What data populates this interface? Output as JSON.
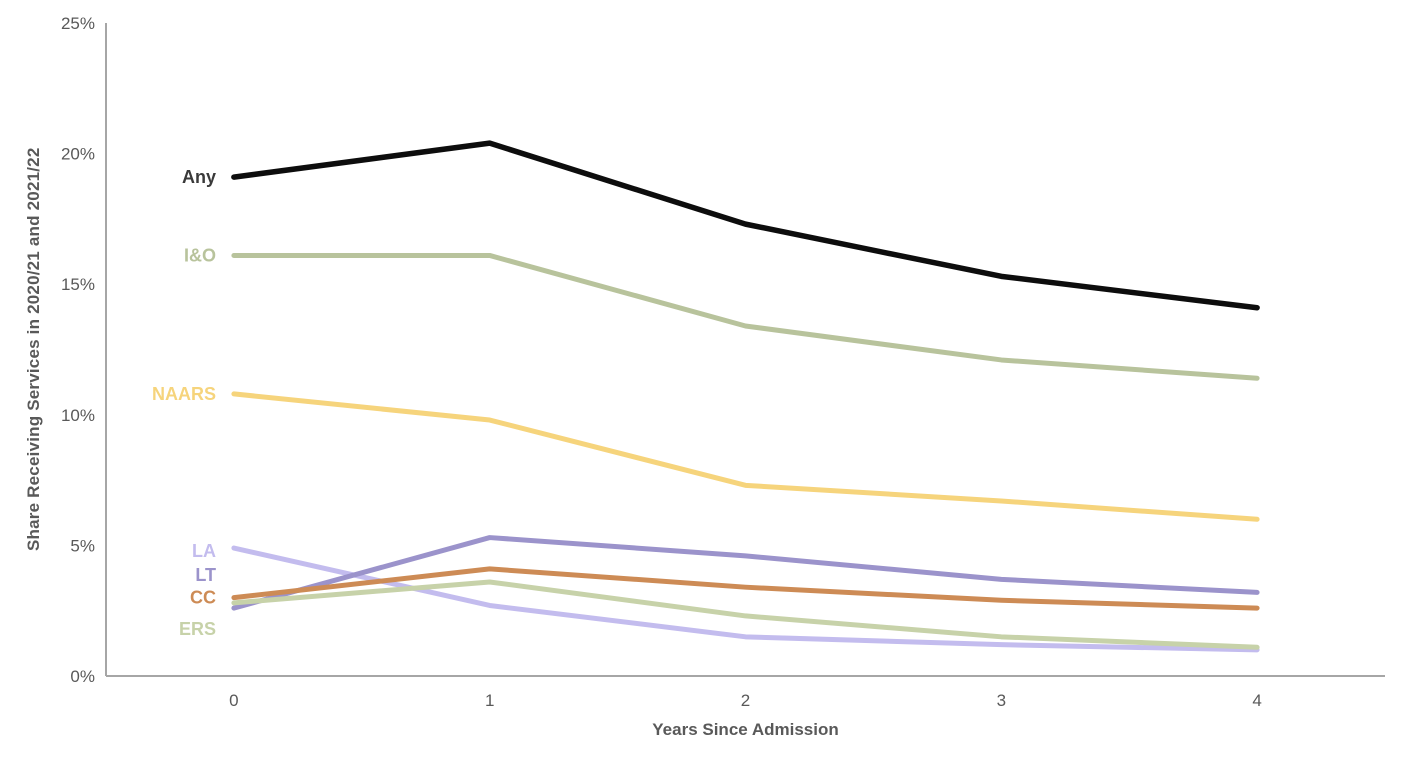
{
  "chart_data": {
    "type": "line",
    "title": "",
    "xlabel": "Years Since Admission",
    "ylabel": "Share Receiving Services in 2020/21 and 2021/22",
    "x": [
      0,
      1,
      2,
      3,
      4
    ],
    "x_tick_labels": [
      "0",
      "1",
      "2",
      "3",
      "4"
    ],
    "ylim": [
      0,
      25
    ],
    "yticks": [
      0,
      5,
      10,
      15,
      20,
      25
    ],
    "ytick_labels": [
      "0%",
      "5%",
      "10%",
      "15%",
      "20%",
      "25%"
    ],
    "grid": false,
    "legend_position": "inline-labels-left-of-lines",
    "axis_color": "#a6a6a6",
    "text_color": "#595959",
    "series": [
      {
        "name": "Any",
        "color": "#0d0d0d",
        "label_color": "#3a3a3a",
        "values": [
          19.1,
          20.4,
          17.3,
          15.3,
          14.1
        ],
        "label_dy": 0,
        "stroke_width": 5.5
      },
      {
        "name": "I&O",
        "color": "#b8c39c",
        "label_color": "#b8c39c",
        "values": [
          16.1,
          16.1,
          13.4,
          12.1,
          11.4
        ],
        "label_dy": 0,
        "stroke_width": 5
      },
      {
        "name": "NAARS",
        "color": "#f6d47c",
        "label_color": "#f6d47c",
        "values": [
          10.8,
          9.8,
          7.3,
          6.7,
          6.0
        ],
        "label_dy": 0,
        "stroke_width": 5
      },
      {
        "name": "LA",
        "color": "#c3bcee",
        "label_color": "#c3bcee",
        "values": [
          4.9,
          2.7,
          1.5,
          1.2,
          1.0
        ],
        "label_dy": 3,
        "stroke_width": 5
      },
      {
        "name": "LT",
        "color": "#9b93cb",
        "label_color": "#9b93cb",
        "values": [
          2.6,
          5.3,
          4.6,
          3.7,
          3.2
        ],
        "label_dy": -33,
        "stroke_width": 5
      },
      {
        "name": "CC",
        "color": "#cd8b55",
        "label_color": "#cd8b55",
        "values": [
          3.0,
          4.1,
          3.4,
          2.9,
          2.6
        ],
        "label_dy": 0,
        "stroke_width": 5
      },
      {
        "name": "ERS",
        "color": "#c7d2a9",
        "label_color": "#c7d2a9",
        "values": [
          2.8,
          3.6,
          2.3,
          1.5,
          1.1
        ],
        "label_dy": 26,
        "stroke_width": 5
      }
    ]
  }
}
